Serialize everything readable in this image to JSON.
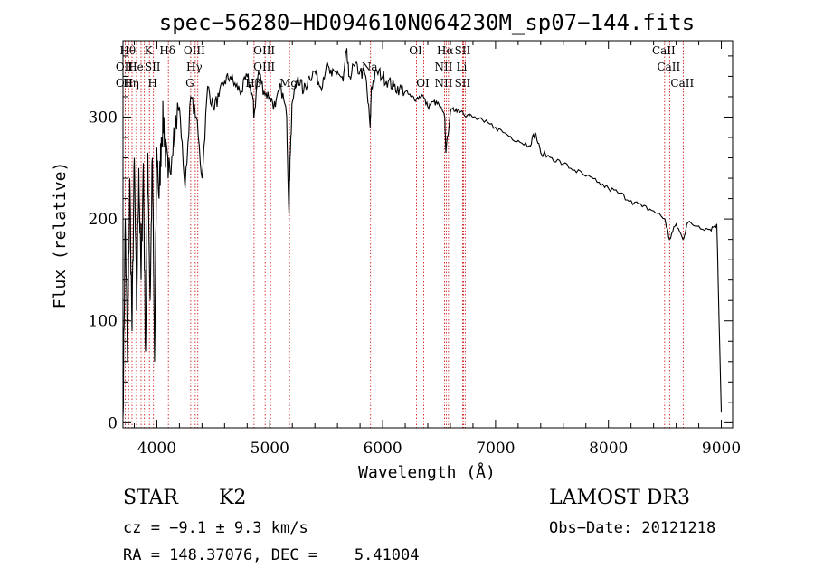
{
  "chart_data": {
    "type": "line",
    "title": "spec−56280−HD094610N064230M_sp07−144.fits",
    "xlabel": "Wavelength (Å)",
    "ylabel": "Flux (relative)",
    "xlim": [
      3700,
      9100
    ],
    "ylim": [
      -5,
      375
    ],
    "xticks": [
      4000,
      5000,
      6000,
      7000,
      8000,
      9000
    ],
    "yticks": [
      0,
      100,
      200,
      300
    ],
    "grid": false,
    "line_color": "#000000",
    "marker_color": "#cc0000",
    "series": [
      {
        "x": [
          3700,
          3720,
          3740,
          3760,
          3780,
          3800,
          3820,
          3840,
          3860,
          3880,
          3900,
          3920,
          3940,
          3960,
          3980,
          4000,
          4020,
          4040,
          4060,
          4080,
          4100,
          4150,
          4200,
          4250,
          4300,
          4350,
          4400,
          4450,
          4500,
          4550,
          4600,
          4650,
          4700,
          4750,
          4800,
          4850,
          4860,
          4900,
          4950,
          5000,
          5050,
          5100,
          5150,
          5170,
          5180,
          5200,
          5250,
          5300,
          5350,
          5400,
          5450,
          5500,
          5550,
          5600,
          5650,
          5680,
          5700,
          5750,
          5800,
          5850,
          5890,
          5900,
          5950,
          6000,
          6050,
          6100,
          6150,
          6200,
          6250,
          6300,
          6350,
          6400,
          6450,
          6500,
          6550,
          6560,
          6600,
          6650,
          6700,
          6750,
          6800,
          6900,
          7000,
          7100,
          7200,
          7300,
          7350,
          7400,
          7500,
          7600,
          7700,
          7800,
          7900,
          8000,
          8100,
          8200,
          8300,
          8400,
          8500,
          8540,
          8600,
          8660,
          8700,
          8800,
          8900,
          8960,
          9000
        ],
        "y": [
          5,
          200,
          60,
          240,
          90,
          260,
          110,
          250,
          140,
          255,
          70,
          265,
          120,
          260,
          60,
          270,
          220,
          280,
          300,
          260,
          240,
          290,
          310,
          230,
          320,
          300,
          240,
          330,
          310,
          320,
          335,
          340,
          330,
          325,
          340,
          320,
          300,
          345,
          325,
          320,
          310,
          330,
          300,
          205,
          260,
          315,
          340,
          325,
          340,
          345,
          330,
          350,
          340,
          345,
          335,
          365,
          340,
          350,
          345,
          340,
          290,
          330,
          345,
          340,
          335,
          330,
          328,
          325,
          320,
          318,
          322,
          310,
          315,
          312,
          300,
          265,
          305,
          308,
          306,
          302,
          300,
          295,
          290,
          283,
          277,
          272,
          285,
          265,
          260,
          254,
          248,
          242,
          236,
          230,
          225,
          218,
          212,
          208,
          200,
          180,
          195,
          180,
          196,
          193,
          190,
          195,
          10
        ]
      }
    ],
    "lines": [
      {
        "w": 3720,
        "labels": [
          "",
          "OII",
          "OII"
        ]
      },
      {
        "w": 3750,
        "labels": [
          "Hθ",
          "",
          ""
        ]
      },
      {
        "w": 3780,
        "labels": [
          "",
          "",
          "Hη"
        ]
      },
      {
        "w": 3820,
        "labels": [
          "",
          "He",
          ""
        ]
      },
      {
        "w": 3860,
        "labels": [
          "",
          "",
          ""
        ]
      },
      {
        "w": 3890,
        "labels": [
          "",
          "",
          ""
        ]
      },
      {
        "w": 3934,
        "labels": [
          "K",
          "",
          ""
        ]
      },
      {
        "w": 3970,
        "labels": [
          "",
          "SII",
          "H"
        ]
      },
      {
        "w": 4102,
        "labels": [
          "Hδ",
          "",
          ""
        ]
      },
      {
        "w": 4300,
        "labels": [
          "",
          "",
          "G"
        ]
      },
      {
        "w": 4340,
        "labels": [
          "OIII",
          "Hγ",
          ""
        ]
      },
      {
        "w": 4363,
        "labels": [
          "",
          "",
          ""
        ]
      },
      {
        "w": 4861,
        "labels": [
          "",
          "",
          "Hβ"
        ]
      },
      {
        "w": 4959,
        "labels": [
          "OIII",
          "OIII",
          ""
        ]
      },
      {
        "w": 5007,
        "labels": [
          "",
          "",
          ""
        ]
      },
      {
        "w": 5175,
        "labels": [
          "",
          "",
          "Mg"
        ]
      },
      {
        "w": 5893,
        "labels": [
          "",
          "Na",
          ""
        ]
      },
      {
        "w": 6300,
        "labels": [
          "OI",
          "",
          ""
        ]
      },
      {
        "w": 6364,
        "labels": [
          "",
          "",
          "OI"
        ]
      },
      {
        "w": 6548,
        "labels": [
          "",
          "NII",
          "NII"
        ]
      },
      {
        "w": 6563,
        "labels": [
          "Hα",
          "",
          ""
        ]
      },
      {
        "w": 6583,
        "labels": [
          "",
          "",
          ""
        ]
      },
      {
        "w": 6708,
        "labels": [
          "",
          "Li",
          ""
        ]
      },
      {
        "w": 6716,
        "labels": [
          "SII",
          "",
          "SII"
        ]
      },
      {
        "w": 6731,
        "labels": [
          "",
          "",
          ""
        ]
      },
      {
        "w": 8498,
        "labels": [
          "CaII",
          "",
          ""
        ]
      },
      {
        "w": 8542,
        "labels": [
          "",
          "CaII",
          ""
        ]
      },
      {
        "w": 8662,
        "labels": [
          "",
          "",
          "CaII"
        ]
      }
    ]
  },
  "info": {
    "class": "STAR",
    "subclass": "K2",
    "survey": "LAMOST DR3",
    "cz": "cz = −9.1 ± 9.3 km/s",
    "obs_date": "Obs−Date: 20121218",
    "coords": "RA = 148.37076, DEC =    5.41004"
  }
}
